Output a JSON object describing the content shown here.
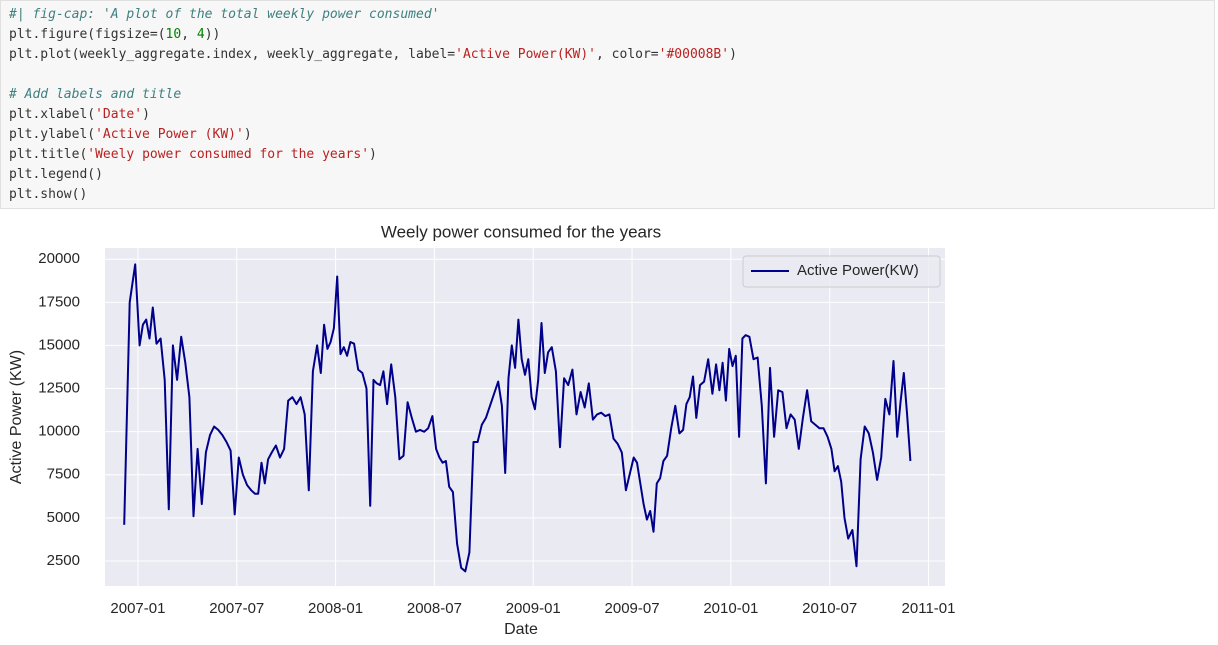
{
  "code": {
    "lines": [
      [
        "#| fig-cap: 'A plot of the total weekly power consumed'"
      ],
      [
        "plt.figure(figsize=(",
        "10",
        ", ",
        "4",
        "))"
      ],
      [
        "plt.plot(weekly_aggregate.index, weekly_aggregate, label=",
        "'Active Power(KW)'",
        ", color=",
        "'#00008B'",
        ")"
      ],
      [
        "# Add labels and title"
      ],
      [
        "plt.xlabel(",
        "'Date'",
        ")"
      ],
      [
        "plt.ylabel(",
        "'Active Power (KW)'",
        ")"
      ],
      [
        "plt.title(",
        "'Weely power consumed for the years'",
        ")"
      ],
      [
        "plt.legend()"
      ],
      [
        "plt.show()"
      ]
    ]
  },
  "chart_data": {
    "type": "line",
    "title": "Weely power consumed for the years",
    "xlabel": "Date",
    "ylabel": "Active Power (KW)",
    "x": [
      "2006-12",
      "2006-12",
      "2006-12",
      "2007-01",
      "2007-01",
      "2007-01",
      "2007-01",
      "2007-01",
      "2007-02",
      "2007-02",
      "2007-02",
      "2007-02",
      "2007-03",
      "2007-03",
      "2007-03",
      "2007-03",
      "2007-04",
      "2007-04",
      "2007-04",
      "2007-04",
      "2007-05",
      "2007-05",
      "2007-05",
      "2007-05",
      "2007-06",
      "2007-06",
      "2007-06",
      "2007-06",
      "2007-07",
      "2007-07",
      "2007-07",
      "2007-07",
      "2007-08",
      "2007-08",
      "2007-08",
      "2007-08",
      "2007-08",
      "2007-09",
      "2007-09",
      "2007-09",
      "2007-09",
      "2007-10",
      "2007-10",
      "2007-10",
      "2007-10",
      "2007-11",
      "2007-11",
      "2007-11",
      "2007-11",
      "2007-12",
      "2007-12",
      "2007-12",
      "2007-12",
      "2007-12",
      "2008-01",
      "2008-01",
      "2008-01",
      "2008-01",
      "2008-01",
      "2008-02",
      "2008-02",
      "2008-02",
      "2008-02",
      "2008-03",
      "2008-03",
      "2008-03",
      "2008-03",
      "2008-03",
      "2008-04",
      "2008-04",
      "2008-04",
      "2008-04",
      "2008-05",
      "2008-05",
      "2008-05",
      "2008-05",
      "2008-06",
      "2008-06",
      "2008-06",
      "2008-06",
      "2008-07",
      "2008-07",
      "2008-07",
      "2008-07",
      "2008-07",
      "2008-08",
      "2008-08",
      "2008-08",
      "2008-08",
      "2008-09",
      "2008-09",
      "2008-09",
      "2008-09",
      "2008-10",
      "2008-10",
      "2008-10",
      "2008-10",
      "2008-11",
      "2008-11",
      "2008-11",
      "2008-11",
      "2008-11",
      "2008-12",
      "2008-12",
      "2008-12",
      "2008-12",
      "2008-12",
      "2009-01",
      "2009-01",
      "2009-01",
      "2009-01",
      "2009-01",
      "2009-02",
      "2009-02",
      "2009-02",
      "2009-02",
      "2009-03",
      "2009-03",
      "2009-03",
      "2009-03",
      "2009-04",
      "2009-04",
      "2009-04",
      "2009-04",
      "2009-05",
      "2009-05",
      "2009-05",
      "2009-05",
      "2009-06",
      "2009-06",
      "2009-06",
      "2009-06",
      "2009-07",
      "2009-07",
      "2009-07",
      "2009-07",
      "2009-07",
      "2009-08",
      "2009-08",
      "2009-08",
      "2009-08",
      "2009-08",
      "2009-09",
      "2009-09",
      "2009-09",
      "2009-09",
      "2009-10",
      "2009-10",
      "2009-10",
      "2009-10",
      "2009-10",
      "2009-11",
      "2009-11",
      "2009-11",
      "2009-11",
      "2009-12",
      "2009-12",
      "2009-12",
      "2009-12",
      "2009-12",
      "2010-01",
      "2010-01",
      "2010-01",
      "2010-01",
      "2010-01",
      "2010-02",
      "2010-02",
      "2010-02",
      "2010-02",
      "2010-03",
      "2010-03",
      "2010-03",
      "2010-03",
      "2010-04",
      "2010-04",
      "2010-04",
      "2010-04",
      "2010-05",
      "2010-05",
      "2010-05",
      "2010-05",
      "2010-06",
      "2010-06",
      "2010-06",
      "2010-06",
      "2010-07",
      "2010-07",
      "2010-07",
      "2010-07",
      "2010-07",
      "2010-08",
      "2010-08",
      "2010-08",
      "2010-08",
      "2010-09",
      "2010-09",
      "2010-09",
      "2010-09",
      "2010-10",
      "2010-10",
      "2010-10",
      "2010-10",
      "2010-11",
      "2010-11",
      "2010-11",
      "2010-11",
      "2010-11"
    ],
    "series": [
      {
        "name": "Active Power(KW)",
        "color": "#00008B",
        "values": [
          4600,
          17500,
          19700,
          15000,
          16200,
          16500,
          15400,
          17200,
          15100,
          15400,
          13000,
          5500,
          15000,
          13000,
          15500,
          14000,
          12000,
          5100,
          9000,
          5800,
          8800,
          9800,
          10300,
          10100,
          9800,
          9400,
          8900,
          5200,
          8500,
          7500,
          6900,
          6600,
          6400,
          6400,
          8200,
          7000,
          8400,
          8800,
          9200,
          8500,
          9000,
          11800,
          12000,
          11600,
          12000,
          11000,
          6600,
          13500,
          15000,
          13400,
          16200,
          14800,
          15200,
          16000,
          19000,
          14500,
          14900,
          14400,
          15200,
          15100,
          13600,
          13400,
          12500,
          5700,
          13000,
          12800,
          12700,
          13500,
          11600,
          13900,
          12000,
          8400,
          8600,
          11700,
          10800,
          10000,
          10100,
          10000,
          10200,
          10900,
          9000,
          8500,
          8200,
          8300,
          6800,
          6500,
          3500,
          2100,
          1900,
          3000,
          9400,
          9400,
          10400,
          10800,
          11500,
          12200,
          12900,
          11500,
          7600,
          13100,
          15000,
          13700,
          16500,
          14200,
          13300,
          14200,
          12000,
          11300,
          13000,
          16300,
          13400,
          14600,
          14900,
          13500,
          9100,
          13100,
          12700,
          13600,
          11000,
          12300,
          11400,
          12800,
          10700,
          11000,
          11100,
          10900,
          11000,
          9600,
          9300,
          8800,
          6600,
          7600,
          8500,
          8200,
          7000,
          5800,
          4900,
          5400,
          4200,
          7000,
          7300,
          8300,
          8600,
          10200,
          11500,
          9900,
          10100,
          11600,
          12000,
          13200,
          10800,
          12700,
          12900,
          14200,
          12200,
          13900,
          12400,
          14000,
          11800,
          14800,
          13800,
          14400,
          9700,
          15400,
          15600,
          15500,
          14200,
          14300,
          11500,
          7000,
          13700,
          9700,
          12400,
          12300,
          10200,
          11000,
          10700,
          9000,
          10800,
          12400,
          10600,
          10400,
          10200,
          10200,
          9700,
          9000,
          7700,
          8000,
          7100,
          5000,
          3800,
          4300,
          2200,
          8400,
          10300,
          9900,
          8800,
          7200,
          8500,
          11900,
          11000,
          14100,
          9700,
          11700,
          13400,
          11000,
          8300
        ]
      }
    ],
    "xlim": [
      "2006-11",
      "2011-02"
    ],
    "xticks": [
      "2007-01",
      "2007-07",
      "2008-01",
      "2008-07",
      "2009-01",
      "2009-07",
      "2010-01",
      "2010-07",
      "2011-01"
    ],
    "ylim": [
      1050,
      20650
    ],
    "yticks": [
      2500,
      5000,
      7500,
      10000,
      12500,
      15000,
      17500,
      20000
    ],
    "grid": true,
    "legend": "upper right"
  }
}
